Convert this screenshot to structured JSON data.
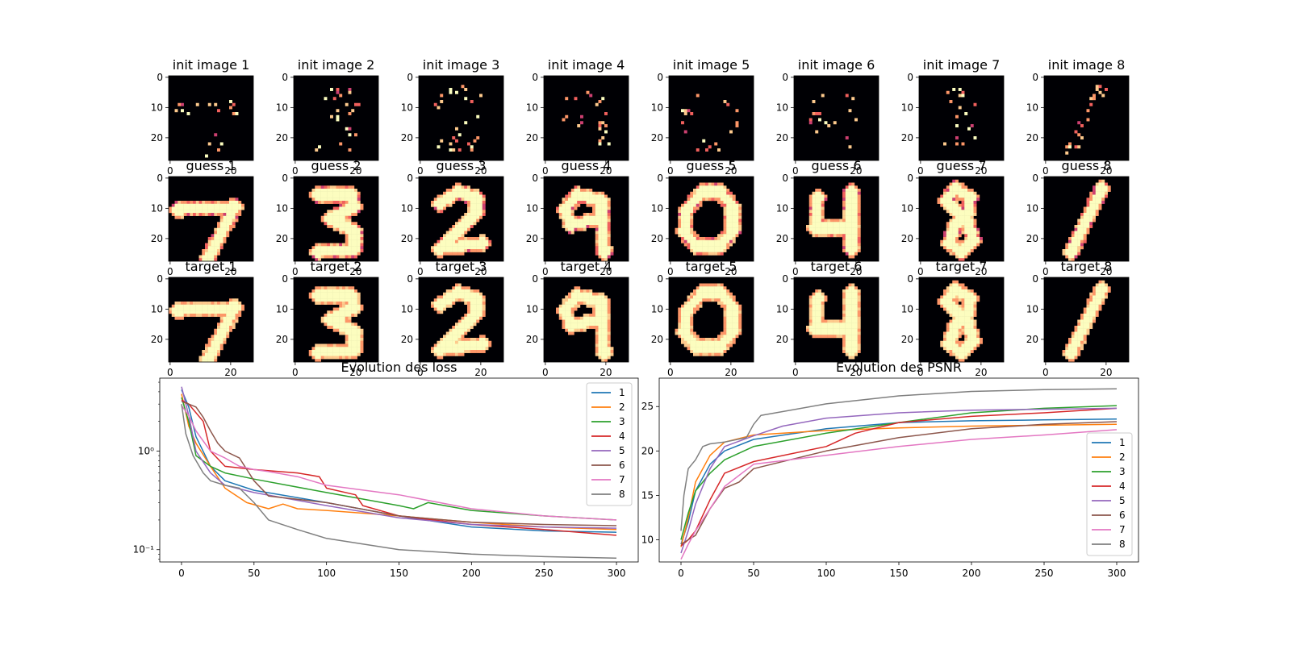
{
  "chart_data": [
    {
      "type": "image-grid",
      "rows": [
        {
          "title_prefix": "init image",
          "titles": [
            "init image 1",
            "init image 2",
            "init image 3",
            "init image 4",
            "init image 5",
            "init image 6",
            "init image 7",
            "init image 8"
          ]
        },
        {
          "title_prefix": "guess",
          "titles": [
            "guess 1",
            "guess 2",
            "guess 3",
            "guess 4",
            "guess 5",
            "guess 6",
            "guess 7",
            "guess 8"
          ]
        },
        {
          "title_prefix": "target",
          "titles": [
            "target 1",
            "target 2",
            "target 3",
            "target 4",
            "target 5",
            "target 6",
            "target 7",
            "target 8"
          ]
        }
      ],
      "digits": [
        "7",
        "3",
        "2",
        "9",
        "0",
        "4",
        "8",
        "1"
      ],
      "xticks": [
        0,
        20
      ],
      "yticks": [
        0,
        10,
        20
      ],
      "colormap": "magma"
    },
    {
      "type": "line",
      "title": "Evolution des loss",
      "yscale": "log",
      "xlim": [
        -15,
        315
      ],
      "ylim": [
        0.075,
        5.5
      ],
      "xticks": [
        0,
        50,
        100,
        150,
        200,
        250,
        300
      ],
      "xtick_labels": [
        "0",
        "50",
        "100",
        "150",
        "200",
        "250",
        "300"
      ],
      "yticks": [
        0.1,
        1.0
      ],
      "ytick_labels": [
        "10⁻¹",
        "10⁰"
      ],
      "legend": "top-right",
      "series": [
        {
          "name": "1",
          "color": "#1f77b4",
          "x": [
            0,
            5,
            10,
            20,
            30,
            50,
            100,
            150,
            200,
            250,
            300
          ],
          "y": [
            4.2,
            2.8,
            1.4,
            0.7,
            0.5,
            0.4,
            0.3,
            0.22,
            0.17,
            0.155,
            0.15
          ]
        },
        {
          "name": "2",
          "color": "#ff7f0e",
          "x": [
            0,
            5,
            10,
            20,
            30,
            45,
            60,
            70,
            80,
            100,
            150,
            200,
            250,
            300
          ],
          "y": [
            3.8,
            1.8,
            1.2,
            0.7,
            0.42,
            0.3,
            0.26,
            0.29,
            0.26,
            0.25,
            0.22,
            0.19,
            0.17,
            0.16
          ]
        },
        {
          "name": "3",
          "color": "#2ca02c",
          "x": [
            0,
            5,
            10,
            20,
            30,
            50,
            100,
            150,
            160,
            170,
            200,
            250,
            300
          ],
          "y": [
            3.5,
            2.0,
            0.9,
            0.7,
            0.6,
            0.52,
            0.38,
            0.28,
            0.26,
            0.3,
            0.25,
            0.22,
            0.2
          ]
        },
        {
          "name": "4",
          "color": "#d62728",
          "x": [
            0,
            5,
            15,
            20,
            30,
            50,
            80,
            95,
            100,
            120,
            125,
            150,
            200,
            250,
            300
          ],
          "y": [
            3.3,
            3.0,
            2.0,
            1.0,
            0.7,
            0.65,
            0.6,
            0.55,
            0.42,
            0.36,
            0.28,
            0.22,
            0.18,
            0.16,
            0.14
          ]
        },
        {
          "name": "5",
          "color": "#9467bd",
          "x": [
            0,
            5,
            10,
            20,
            30,
            50,
            100,
            150,
            200,
            250,
            300
          ],
          "y": [
            4.5,
            2.3,
            1.0,
            0.6,
            0.45,
            0.38,
            0.28,
            0.21,
            0.18,
            0.17,
            0.165
          ]
        },
        {
          "name": "6",
          "color": "#8c564b",
          "x": [
            0,
            5,
            10,
            15,
            20,
            25,
            30,
            40,
            50,
            60,
            100,
            150,
            200,
            250,
            300
          ],
          "y": [
            3.2,
            3.0,
            2.8,
            2.2,
            1.6,
            1.2,
            1.0,
            0.85,
            0.5,
            0.35,
            0.3,
            0.22,
            0.19,
            0.18,
            0.175
          ]
        },
        {
          "name": "7",
          "color": "#e377c2",
          "x": [
            0,
            5,
            10,
            20,
            30,
            40,
            50,
            60,
            80,
            100,
            150,
            200,
            250,
            300
          ],
          "y": [
            2.9,
            2.3,
            1.6,
            1.0,
            0.85,
            0.7,
            0.65,
            0.62,
            0.55,
            0.45,
            0.36,
            0.26,
            0.22,
            0.2
          ]
        },
        {
          "name": "8",
          "color": "#7f7f7f",
          "x": [
            0,
            3,
            8,
            15,
            20,
            30,
            40,
            50,
            60,
            80,
            100,
            150,
            200,
            250,
            300
          ],
          "y": [
            3.0,
            1.5,
            0.9,
            0.6,
            0.5,
            0.45,
            0.42,
            0.3,
            0.2,
            0.16,
            0.13,
            0.1,
            0.09,
            0.085,
            0.082
          ]
        }
      ]
    },
    {
      "type": "line",
      "title": "Evolution des PSNR",
      "xlim": [
        -15,
        315
      ],
      "ylim": [
        7.5,
        28.2
      ],
      "xticks": [
        0,
        50,
        100,
        150,
        200,
        250,
        300
      ],
      "xtick_labels": [
        "0",
        "50",
        "100",
        "150",
        "200",
        "250",
        "300"
      ],
      "yticks": [
        10,
        15,
        20,
        25
      ],
      "ytick_labels": [
        "10",
        "15",
        "20",
        "25"
      ],
      "legend": "lower-right",
      "series": [
        {
          "name": "1",
          "color": "#1f77b4",
          "x": [
            0,
            5,
            10,
            20,
            30,
            50,
            100,
            150,
            200,
            250,
            300
          ],
          "y": [
            9.5,
            12,
            15.5,
            18.5,
            20,
            21.3,
            22.5,
            23.2,
            23.4,
            23.5,
            23.6
          ]
        },
        {
          "name": "2",
          "color": "#ff7f0e",
          "x": [
            0,
            5,
            10,
            20,
            30,
            50,
            100,
            150,
            200,
            250,
            300
          ],
          "y": [
            9.2,
            12.5,
            16.5,
            19.5,
            21,
            21.8,
            22.3,
            22.6,
            22.8,
            22.9,
            23.0
          ]
        },
        {
          "name": "3",
          "color": "#2ca02c",
          "x": [
            0,
            5,
            10,
            20,
            30,
            50,
            100,
            150,
            200,
            250,
            300
          ],
          "y": [
            10,
            13,
            15.5,
            17.5,
            19,
            20.5,
            22,
            23.2,
            24.3,
            24.8,
            25.1
          ]
        },
        {
          "name": "4",
          "color": "#d62728",
          "x": [
            0,
            5,
            10,
            20,
            30,
            50,
            100,
            120,
            150,
            200,
            250,
            300
          ],
          "y": [
            9.3,
            10,
            11,
            14.5,
            17.5,
            18.8,
            20.5,
            22,
            23.2,
            23.9,
            24.3,
            24.8
          ]
        },
        {
          "name": "5",
          "color": "#9467bd",
          "x": [
            0,
            5,
            10,
            20,
            30,
            50,
            70,
            100,
            150,
            200,
            250,
            300
          ],
          "y": [
            8.5,
            11,
            14,
            18,
            20.5,
            21.7,
            22.8,
            23.7,
            24.3,
            24.6,
            24.7,
            24.8
          ]
        },
        {
          "name": "6",
          "color": "#8c564b",
          "x": [
            0,
            5,
            10,
            20,
            30,
            40,
            50,
            100,
            150,
            200,
            250,
            300
          ],
          "y": [
            9.5,
            10,
            10.5,
            13.5,
            15.8,
            16.5,
            18,
            20,
            21.5,
            22.5,
            23,
            23.3
          ]
        },
        {
          "name": "7",
          "color": "#e377c2",
          "x": [
            0,
            5,
            10,
            20,
            30,
            50,
            100,
            150,
            200,
            250,
            300
          ],
          "y": [
            7.8,
            9.5,
            11,
            13.5,
            16,
            18.5,
            19.5,
            20.5,
            21.3,
            21.8,
            22.4
          ]
        },
        {
          "name": "8",
          "color": "#7f7f7f",
          "x": [
            0,
            2,
            5,
            10,
            15,
            20,
            30,
            45,
            50,
            55,
            100,
            150,
            200,
            250,
            300
          ],
          "y": [
            11,
            15,
            18,
            19,
            20.5,
            20.8,
            21,
            21.5,
            23,
            24,
            25.3,
            26.2,
            26.7,
            26.9,
            27.0
          ]
        }
      ]
    }
  ]
}
